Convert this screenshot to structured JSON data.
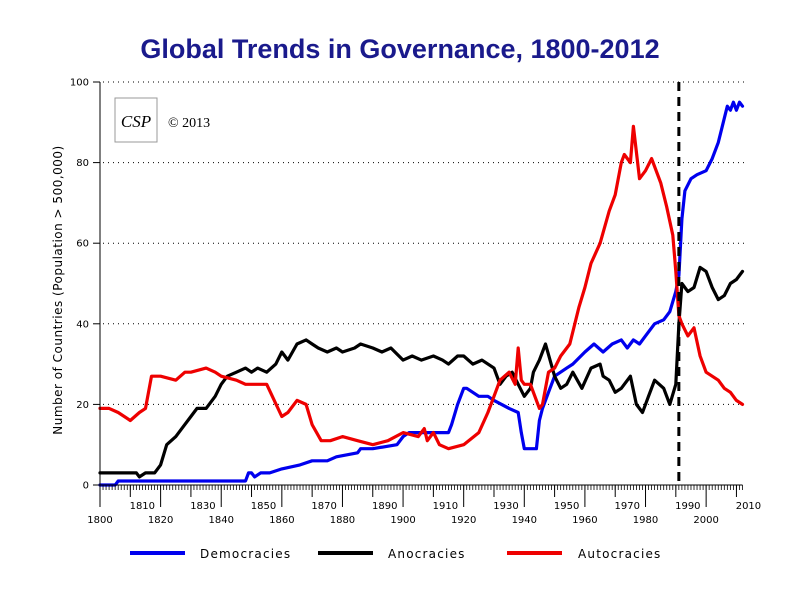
{
  "chart_data": {
    "type": "line",
    "title": "Global Trends in Governance, 1800-2012",
    "xlabel": "",
    "ylabel": "Number of Countries (Population > 500,000)",
    "xlim": [
      1800,
      2012
    ],
    "ylim": [
      0,
      100
    ],
    "yticks": [
      0,
      20,
      40,
      60,
      80,
      100
    ],
    "xticks_upper": [
      1810,
      1830,
      1850,
      1870,
      1890,
      1910,
      1930,
      1950,
      1970,
      1990,
      2010
    ],
    "xticks_lower": [
      1800,
      1820,
      1840,
      1860,
      1880,
      1900,
      1920,
      1940,
      1960,
      1980,
      2000
    ],
    "grid": "horizontal dotted",
    "reference_line": {
      "x": 1991,
      "style": "dashed"
    },
    "annotation": "© 2013",
    "logo_text": "CSP",
    "legend_position": "bottom",
    "series": [
      {
        "name": "Democracies",
        "color": "#0000ee",
        "x": [
          1800,
          1805,
          1806,
          1820,
          1840,
          1848,
          1849,
          1850,
          1851,
          1853,
          1856,
          1860,
          1866,
          1870,
          1875,
          1878,
          1885,
          1886,
          1890,
          1898,
          1900,
          1902,
          1910,
          1915,
          1916,
          1918,
          1920,
          1921,
          1925,
          1928,
          1930,
          1935,
          1938,
          1939,
          1940,
          1942,
          1944,
          1945,
          1946,
          1948,
          1950,
          1954,
          1956,
          1960,
          1963,
          1966,
          1969,
          1972,
          1974,
          1976,
          1978,
          1980,
          1983,
          1986,
          1988,
          1990,
          1991,
          1992,
          1993,
          1995,
          1997,
          2000,
          2002,
          2004,
          2006,
          2007,
          2008,
          2009,
          2010,
          2011,
          2012
        ],
        "y": [
          0,
          0,
          1,
          1,
          1,
          1,
          3,
          3,
          2,
          3,
          3,
          4,
          5,
          6,
          6,
          7,
          8,
          9,
          9,
          10,
          12,
          13,
          13,
          13,
          15,
          20,
          24,
          24,
          22,
          22,
          21,
          19,
          18,
          13,
          9,
          9,
          9,
          16,
          19,
          23,
          27,
          29,
          30,
          33,
          35,
          33,
          35,
          36,
          34,
          36,
          35,
          37,
          40,
          41,
          43,
          48,
          52,
          66,
          73,
          76,
          77,
          78,
          81,
          85,
          91,
          94,
          93,
          95,
          93,
          95,
          94
        ]
      },
      {
        "name": "Anocracies",
        "color": "#000000",
        "x": [
          1800,
          1810,
          1812,
          1813,
          1815,
          1818,
          1820,
          1822,
          1825,
          1827,
          1830,
          1832,
          1835,
          1838,
          1840,
          1842,
          1845,
          1848,
          1850,
          1852,
          1855,
          1858,
          1860,
          1862,
          1865,
          1868,
          1870,
          1872,
          1875,
          1878,
          1880,
          1884,
          1886,
          1890,
          1893,
          1896,
          1900,
          1903,
          1906,
          1910,
          1913,
          1915,
          1918,
          1920,
          1923,
          1926,
          1930,
          1932,
          1934,
          1936,
          1938,
          1940,
          1942,
          1943,
          1945,
          1947,
          1950,
          1952,
          1954,
          1956,
          1959,
          1962,
          1965,
          1966,
          1968,
          1970,
          1972,
          1975,
          1977,
          1979,
          1981,
          1983,
          1986,
          1988,
          1990,
          1991,
          1992,
          1994,
          1996,
          1998,
          2000,
          2002,
          2004,
          2006,
          2008,
          2010,
          2012
        ],
        "y": [
          3,
          3,
          3,
          2,
          3,
          3,
          5,
          10,
          12,
          14,
          17,
          19,
          19,
          22,
          25,
          27,
          28,
          29,
          28,
          29,
          28,
          30,
          33,
          31,
          35,
          36,
          35,
          34,
          33,
          34,
          33,
          34,
          35,
          34,
          33,
          34,
          31,
          32,
          31,
          32,
          31,
          30,
          32,
          32,
          30,
          31,
          29,
          25,
          27,
          28,
          25,
          22,
          24,
          28,
          31,
          35,
          27,
          24,
          25,
          28,
          24,
          29,
          30,
          27,
          26,
          23,
          24,
          27,
          20,
          18,
          22,
          26,
          24,
          20,
          25,
          40,
          50,
          48,
          49,
          54,
          53,
          49,
          46,
          47,
          50,
          51,
          53
        ]
      },
      {
        "name": "Autocracies",
        "color": "#ee0000",
        "x": [
          1800,
          1803,
          1806,
          1810,
          1813,
          1815,
          1817,
          1820,
          1825,
          1828,
          1830,
          1835,
          1838,
          1840,
          1845,
          1848,
          1850,
          1855,
          1860,
          1862,
          1865,
          1868,
          1870,
          1873,
          1876,
          1880,
          1885,
          1890,
          1895,
          1900,
          1905,
          1907,
          1908,
          1910,
          1912,
          1915,
          1920,
          1925,
          1928,
          1930,
          1932,
          1935,
          1937,
          1938,
          1939,
          1940,
          1942,
          1945,
          1946,
          1948,
          1950,
          1952,
          1955,
          1958,
          1960,
          1962,
          1965,
          1968,
          1970,
          1972,
          1973,
          1975,
          1976,
          1978,
          1980,
          1982,
          1985,
          1987,
          1989,
          1990,
          1991,
          1992,
          1994,
          1996,
          1998,
          2000,
          2002,
          2004,
          2006,
          2008,
          2010,
          2012
        ],
        "y": [
          19,
          19,
          18,
          16,
          18,
          19,
          27,
          27,
          26,
          28,
          28,
          29,
          28,
          27,
          26,
          25,
          25,
          25,
          17,
          18,
          21,
          20,
          15,
          11,
          11,
          12,
          11,
          10,
          11,
          13,
          12,
          14,
          11,
          13,
          10,
          9,
          10,
          13,
          18,
          22,
          26,
          28,
          25,
          34,
          26,
          25,
          25,
          19,
          20,
          28,
          29,
          32,
          35,
          44,
          49,
          55,
          60,
          68,
          72,
          80,
          82,
          80,
          89,
          76,
          78,
          81,
          75,
          69,
          62,
          53,
          42,
          40,
          37,
          39,
          32,
          28,
          27,
          26,
          24,
          23,
          21,
          20
        ]
      }
    ]
  }
}
